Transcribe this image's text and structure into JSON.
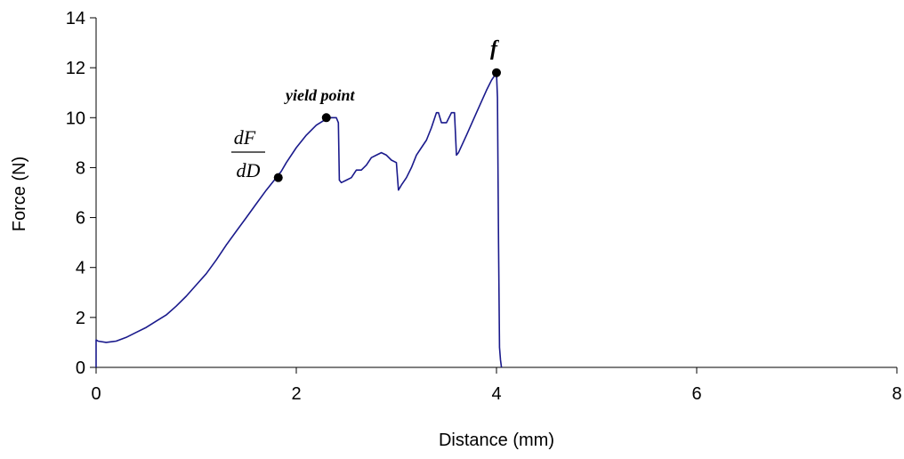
{
  "chart_data": {
    "type": "line",
    "xlabel": "Distance (mm)",
    "ylabel": "Force (N)",
    "xlim": [
      0,
      8
    ],
    "ylim": [
      0,
      14
    ],
    "x_ticks": [
      0,
      2,
      4,
      6,
      8
    ],
    "y_ticks": [
      0,
      2,
      4,
      6,
      8,
      10,
      12,
      14
    ],
    "x_tick_labels": [
      "0",
      "2",
      "4",
      "6",
      "8"
    ],
    "y_tick_labels": [
      "0",
      "2",
      "4",
      "6",
      "8",
      "10",
      "12",
      "14"
    ],
    "grid": false,
    "legend": "none",
    "series": [
      {
        "color": "#1a1a8c",
        "x": [
          0.0,
          0.0,
          0.02,
          0.1,
          0.2,
          0.3,
          0.4,
          0.5,
          0.6,
          0.7,
          0.8,
          0.9,
          1.0,
          1.1,
          1.2,
          1.3,
          1.4,
          1.5,
          1.6,
          1.7,
          1.8,
          1.85,
          1.9,
          2.0,
          2.1,
          2.2,
          2.3,
          2.35,
          2.4,
          2.42,
          2.43,
          2.45,
          2.5,
          2.55,
          2.6,
          2.65,
          2.7,
          2.75,
          2.8,
          2.85,
          2.9,
          2.95,
          3.0,
          3.02,
          3.05,
          3.1,
          3.15,
          3.2,
          3.25,
          3.3,
          3.35,
          3.4,
          3.42,
          3.45,
          3.5,
          3.55,
          3.58,
          3.6,
          3.62,
          3.7,
          3.8,
          3.9,
          3.95,
          4.0,
          4.01,
          4.02,
          4.03,
          4.04,
          4.05
        ],
        "y": [
          0.0,
          1.1,
          1.05,
          1.0,
          1.05,
          1.2,
          1.4,
          1.6,
          1.85,
          2.1,
          2.45,
          2.85,
          3.3,
          3.75,
          4.3,
          4.9,
          5.45,
          6.0,
          6.55,
          7.1,
          7.6,
          7.85,
          8.2,
          8.8,
          9.3,
          9.7,
          9.95,
          10.0,
          10.0,
          9.8,
          7.5,
          7.4,
          7.5,
          7.6,
          7.9,
          7.9,
          8.1,
          8.4,
          8.5,
          8.6,
          8.5,
          8.3,
          8.2,
          7.1,
          7.3,
          7.6,
          8.0,
          8.5,
          8.8,
          9.1,
          9.6,
          10.2,
          10.2,
          9.8,
          9.8,
          10.2,
          10.2,
          8.5,
          8.6,
          9.3,
          10.2,
          11.1,
          11.5,
          11.8,
          10.8,
          5.0,
          0.8,
          0.3,
          0.0
        ]
      }
    ],
    "markers": [
      {
        "x": 1.82,
        "y": 7.6
      },
      {
        "x": 2.3,
        "y": 10.0
      },
      {
        "x": 4.0,
        "y": 11.8
      }
    ],
    "annotations": {
      "slope_numerator": "dF",
      "slope_denominator": "dD",
      "yield_label": "yield point",
      "f_label": "f"
    }
  }
}
